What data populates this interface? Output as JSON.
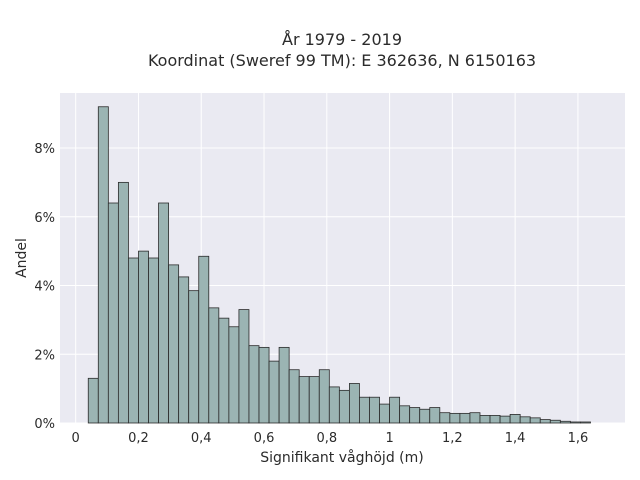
{
  "chart_data": {
    "type": "bar",
    "title_line1": "År 1979 - 2019",
    "title_line2": "Koordinat (Sweref 99 TM): E 362636, N 6150163",
    "xlabel": "Signifikant våghöjd (m)",
    "ylabel": "Andel",
    "xlim": [
      -0.05,
      1.75
    ],
    "ylim": [
      0,
      9.6
    ],
    "x_ticks": [
      0,
      0.2,
      0.4,
      0.6,
      0.8,
      1.0,
      1.2,
      1.4,
      1.6
    ],
    "x_tick_labels": [
      "0",
      "0,2",
      "0,4",
      "0,6",
      "0,8",
      "1",
      "1,2",
      "1,4",
      "1,6"
    ],
    "y_ticks": [
      0,
      2,
      4,
      6,
      8
    ],
    "y_tick_labels": [
      "0%",
      "2%",
      "4%",
      "6%",
      "8%"
    ],
    "grid": true,
    "background": "#eaeaf2",
    "bar_color": "#9bb4b3",
    "bar_edge_color": "#2b2b2b",
    "bin_start": 0.04,
    "bin_width": 0.032,
    "values": [
      1.3,
      9.2,
      6.4,
      7.0,
      4.8,
      5.0,
      4.8,
      6.4,
      4.6,
      4.25,
      3.85,
      4.85,
      3.35,
      3.05,
      2.8,
      3.3,
      2.25,
      2.2,
      1.8,
      2.2,
      1.55,
      1.35,
      1.35,
      1.55,
      1.05,
      0.95,
      1.15,
      0.75,
      0.75,
      0.55,
      0.75,
      0.5,
      0.45,
      0.4,
      0.45,
      0.3,
      0.28,
      0.28,
      0.3,
      0.22,
      0.22,
      0.2,
      0.25,
      0.18,
      0.15,
      0.1,
      0.08,
      0.05,
      0.03,
      0.03
    ]
  }
}
